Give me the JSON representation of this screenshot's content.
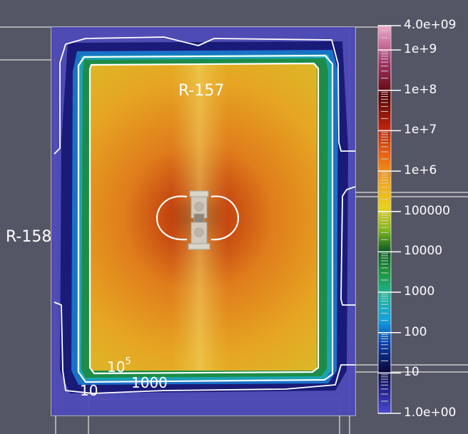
{
  "labels": {
    "room_main": "R-157",
    "room_left": "R-158",
    "contour_1e5_base": "10",
    "contour_1e5_exp": "5",
    "contour_1000": "1000",
    "contour_10": "10"
  },
  "color_scale": {
    "type": "log",
    "min": 1.0,
    "max": 4000000000.0,
    "ticks": [
      {
        "value": 4000000000.0,
        "label": "4.0e+09"
      },
      {
        "value": 1000000000.0,
        "label": "1e+9"
      },
      {
        "value": 100000000.0,
        "label": "1e+8"
      },
      {
        "value": 10000000.0,
        "label": "1e+7"
      },
      {
        "value": 1000000.0,
        "label": "1e+6"
      },
      {
        "value": 100000.0,
        "label": "100000"
      },
      {
        "value": 10000.0,
        "label": "10000"
      },
      {
        "value": 1000.0,
        "label": "1000"
      },
      {
        "value": 100.0,
        "label": "100"
      },
      {
        "value": 10,
        "label": "10"
      },
      {
        "value": 1,
        "label": "1.0e+00"
      }
    ],
    "colors": [
      "#3b4cc0",
      "#1f1f8a",
      "#0a0a45",
      "#0a5ad6",
      "#15b0e0",
      "#1aa86a",
      "#0d6e2a",
      "#c8d11c",
      "#f1c40f",
      "#f08c0c",
      "#c9300e",
      "#6e0a0a",
      "#c43a7a",
      "#e8a6c7"
    ]
  },
  "field_colors": {
    "background": "#545666",
    "outer_blue": "#4a47b8",
    "deep_blue": "#14156a",
    "teal": "#1c9aa6",
    "green": "#1c8a45",
    "yellow": "#d7b51c",
    "orange": "#df8a1d",
    "hot": "#b6400f",
    "contour_line": "#ffffff"
  }
}
